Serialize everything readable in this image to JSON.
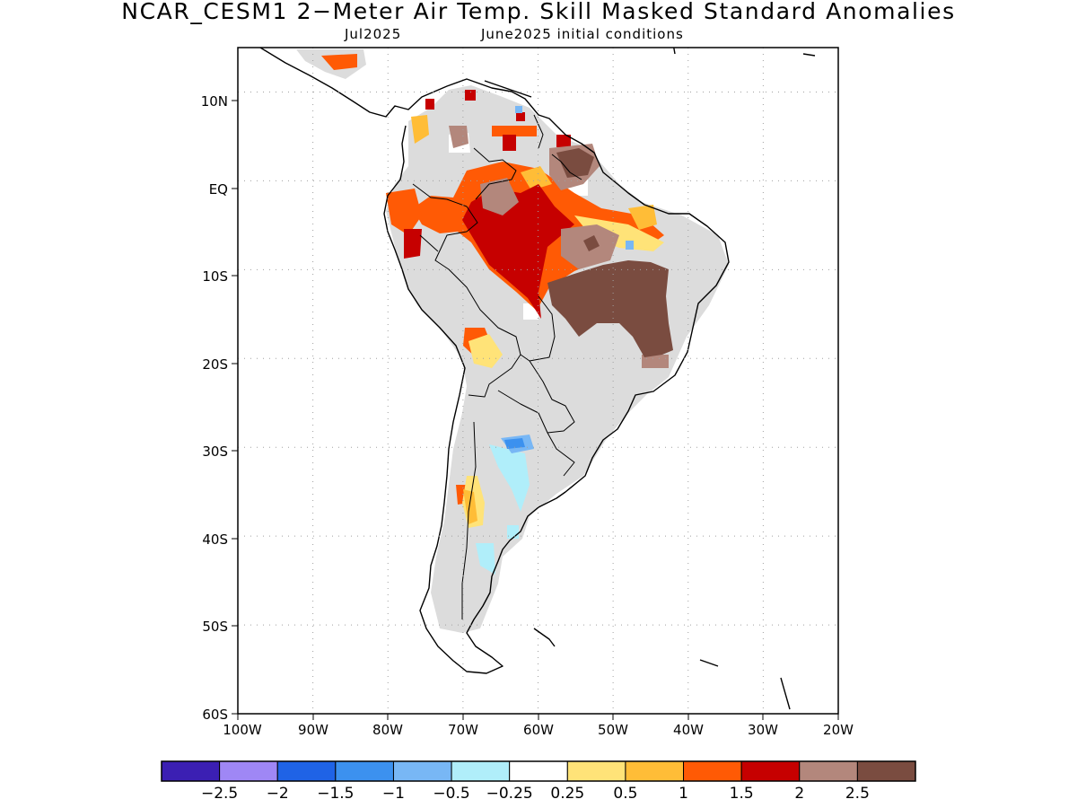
{
  "title": "NCAR_CESM1 2−Meter Air Temp. Skill Masked Standard Anomalies",
  "subtitle": {
    "month": "Jul2025",
    "init": "June2025 initial conditions"
  },
  "map": {
    "region": "South America",
    "lon_range": [
      -100,
      -20
    ],
    "lat_range": [
      -60,
      15
    ],
    "lat_tick_labels": [
      "10N",
      "EQ",
      "10S",
      "20S",
      "30S",
      "40S",
      "50S",
      "60S"
    ],
    "lon_tick_labels": [
      "100W",
      "90W",
      "80W",
      "70W",
      "60W",
      "50W",
      "40W",
      "30W",
      "20W"
    ],
    "grid": "dotted"
  },
  "colorbar": {
    "colors": [
      "#3b1fb3",
      "#9f87f5",
      "#1f63e6",
      "#3c91ef",
      "#78b7f5",
      "#b0eefa",
      "#ffffff",
      "#ffe378",
      "#ffbd37",
      "#ff5a05",
      "#c60000",
      "#b3877c",
      "#7a4c40"
    ],
    "labels": [
      "−2.5",
      "−2",
      "−1.5",
      "−1",
      "−0.5",
      "−0.25",
      "0.25",
      "0.5",
      "1",
      "1.5",
      "2",
      "2.5"
    ]
  },
  "palette": {
    "masked": "#dcdcdc",
    "coast": "#000000"
  }
}
